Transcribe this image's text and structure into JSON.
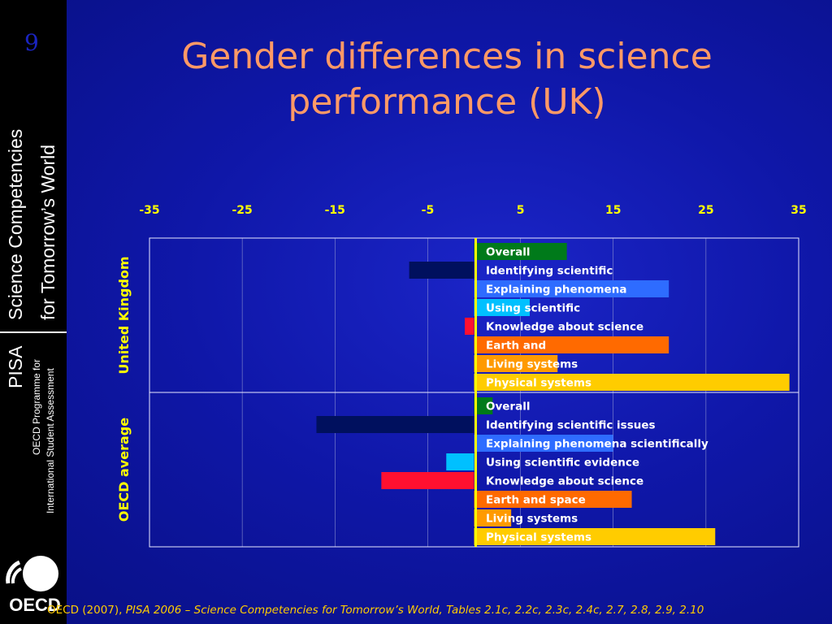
{
  "sidebar": {
    "slide_number": "9",
    "series_title_line1": "Science Competencies",
    "series_title_line2": "for Tomorrow’s World",
    "pisa": "PISA",
    "programme_line1": "OECD Programme for",
    "programme_line2": "International Student Assessment",
    "logo_text": "OECD"
  },
  "title": "Gender differences in science performance (UK)",
  "footer": {
    "plain": "OECD (2007), ",
    "italic": "PISA 2006 – Science Competencies for Tomorrow’s World, Tables 2.1c, 2.2c, 2.3c, 2.4c, 2.7, 2.8, 2.9, 2.10"
  },
  "colors": {
    "background": "#1018a8",
    "title": "#ff9966",
    "axis_labels": "#ffff00",
    "zero_line": "#ffff00",
    "grid": "#8a8fcf",
    "footer": "#ffcc00"
  },
  "chart_data": {
    "type": "bar",
    "orientation": "horizontal",
    "xlim": [
      -35,
      35
    ],
    "x_ticks": [
      -35,
      -25,
      -15,
      -5,
      5,
      15,
      25,
      35
    ],
    "grid": true,
    "groups": [
      {
        "name": "United Kingdom",
        "bars": [
          {
            "label": "Overall",
            "value": 10,
            "color": "#007a1a"
          },
          {
            "label": "Identifying scientific",
            "value": -7,
            "color": "#00105e"
          },
          {
            "label": "Explaining phenomena",
            "value": 21,
            "color": "#2e6cff"
          },
          {
            "label": "Using scientific",
            "value": 6,
            "color": "#00c0ff"
          },
          {
            "label": "Knowledge about science",
            "value": -1,
            "color": "#ff1030"
          },
          {
            "label": "Earth and",
            "value": 21,
            "color": "#ff6a00"
          },
          {
            "label": "Living systems",
            "value": 9,
            "color": "#ff9a00"
          },
          {
            "label": "Physical systems",
            "value": 34,
            "color": "#ffcc00"
          }
        ]
      },
      {
        "name": "OECD average",
        "bars": [
          {
            "label": "Overall",
            "value": 2,
            "color": "#007a1a"
          },
          {
            "label": "Identifying scientific issues",
            "value": -17,
            "color": "#00105e"
          },
          {
            "label": "Explaining phenomena scientifically",
            "value": 15,
            "color": "#2e6cff"
          },
          {
            "label": "Using scientific evidence",
            "value": -3,
            "color": "#00c0ff"
          },
          {
            "label": "Knowledge about science",
            "value": -10,
            "color": "#ff1030"
          },
          {
            "label": "Earth and space",
            "value": 17,
            "color": "#ff6a00"
          },
          {
            "label": "Living systems",
            "value": 4,
            "color": "#ff9a00"
          },
          {
            "label": "Physical systems",
            "value": 26,
            "color": "#ffcc00"
          }
        ]
      }
    ]
  }
}
